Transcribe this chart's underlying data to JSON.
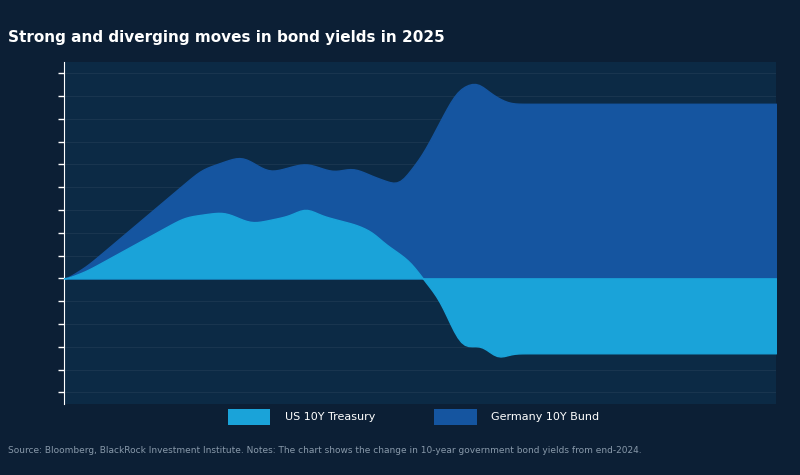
{
  "title": "Strong and diverging moves in bond yields in 2025",
  "bg_color": "#0c1f35",
  "plot_bg_color": "#0c2a45",
  "light_blue": "#1aa3d9",
  "dark_blue": "#1555a0",
  "text_color": "#ffffff",
  "legend_us_label": "US 10Y Treasury",
  "legend_de_label": "Germany 10Y Bund",
  "note": "Source: Bloomberg, BlackRock Investment Institute. Notes: The chart shows the change in 10-year government bond yields from end-2024.",
  "ylim_low": -55,
  "ylim_high": 95,
  "n_yticks": 16,
  "ytick_step": 10,
  "ytick_start": -50
}
